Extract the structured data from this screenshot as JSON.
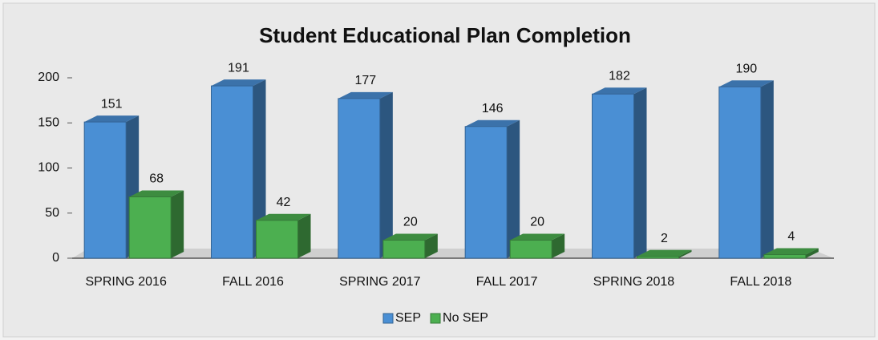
{
  "chart_data": {
    "type": "bar3d",
    "title": "Student Educational Plan Completion",
    "categories": [
      "SPRING 2016",
      "FALL 2016",
      "SPRING 2017",
      "FALL 2017",
      "SPRING 2018",
      "FALL 2018"
    ],
    "series": [
      {
        "name": "SEP",
        "color": "#4a8fd4",
        "values": [
          151,
          191,
          177,
          146,
          182,
          190
        ]
      },
      {
        "name": "No SEP",
        "color": "#4caf50",
        "values": [
          68,
          42,
          20,
          20,
          2,
          4
        ]
      }
    ],
    "ylim": [
      0,
      200
    ],
    "yticks": [
      0,
      50,
      100,
      150,
      200
    ],
    "grid": false,
    "legend": "bottom"
  }
}
